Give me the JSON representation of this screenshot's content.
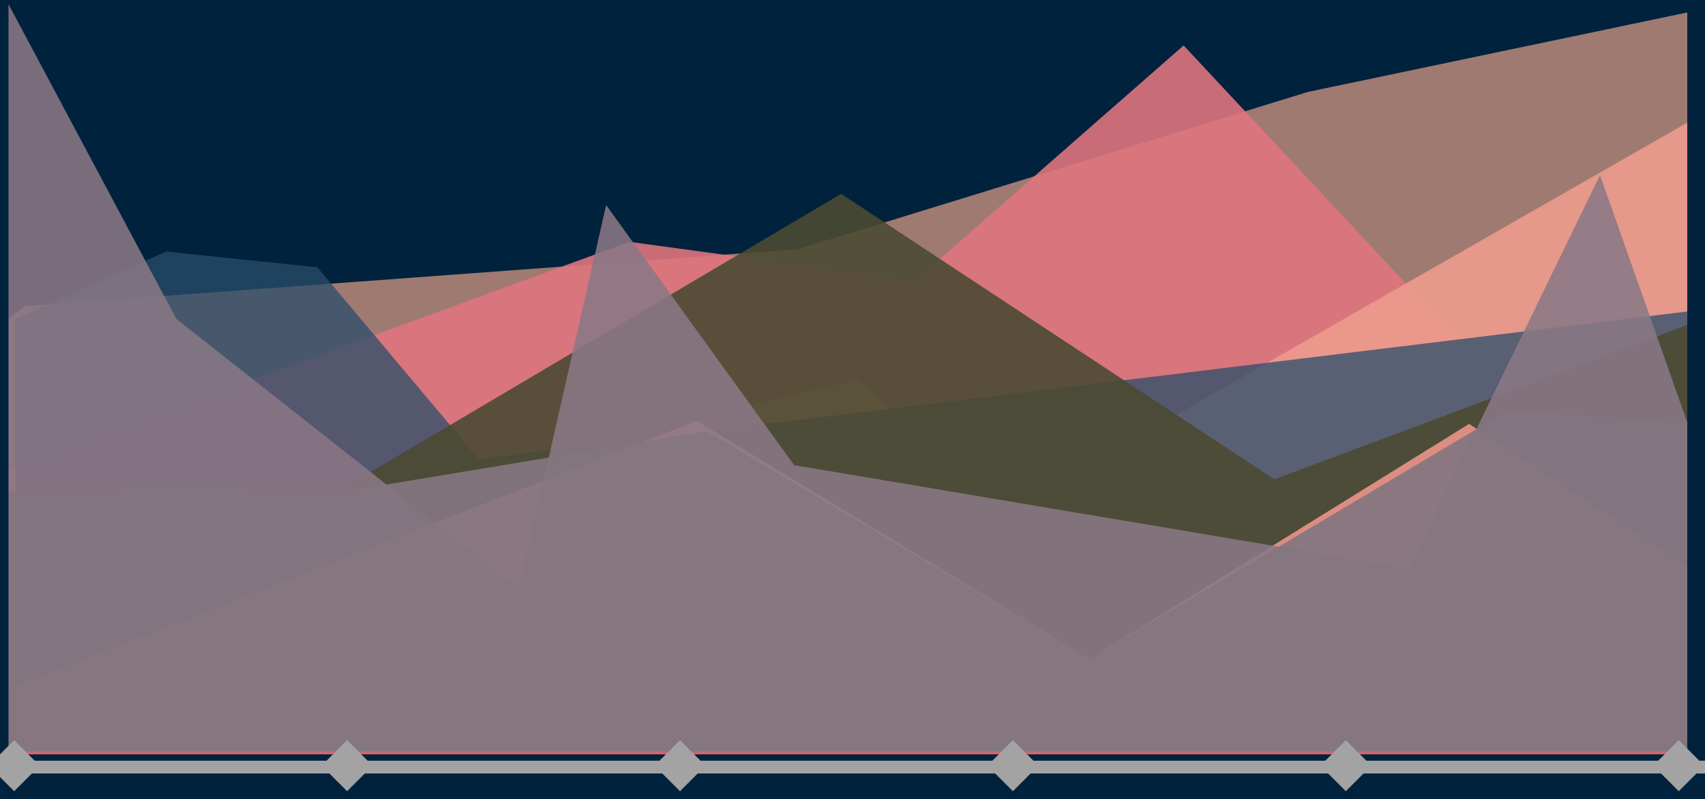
{
  "chart_data": {
    "type": "area",
    "title": "",
    "xlabel": "",
    "ylabel": "",
    "legend": "none",
    "grid": false,
    "background_color": "#00223d",
    "axis_color": "#a3a3a3",
    "marker_shape": "diamond",
    "x": [
      0,
      1,
      2,
      3,
      4,
      5
    ],
    "ylim": [
      0,
      100
    ],
    "series": [
      {
        "color": "#a47d73",
        "opacity": 0.97,
        "points": [
          [
            0,
            58
          ],
          [
            0.047,
            59.7
          ],
          [
            2.35,
            67.3
          ],
          [
            3.87,
            88.3
          ],
          [
            5,
            98.9
          ]
        ]
      },
      {
        "color": "#de747e",
        "opacity": 0.9,
        "points": [
          [
            0,
            38
          ],
          [
            1.85,
            68.3
          ],
          [
            2.7,
            63.1
          ],
          [
            3.5,
            94.5
          ],
          [
            5,
            22.5
          ]
        ]
      },
      {
        "color": "#ed9b8d",
        "opacity": 0.9,
        "points": [
          [
            0,
            24
          ],
          [
            2.53,
            49.9
          ],
          [
            2.97,
            32.2
          ],
          [
            5,
            84.2
          ]
        ]
      },
      {
        "color": "#2a4e6b",
        "opacity": 0.75,
        "points": [
          [
            0.02,
            58
          ],
          [
            0.47,
            67
          ],
          [
            0.92,
            64.9
          ],
          [
            1.4,
            39.3
          ],
          [
            5,
            59
          ]
        ]
      },
      {
        "color": "#4a4a32",
        "opacity": 0.9,
        "points": [
          [
            0,
            9
          ],
          [
            2.48,
            74.7
          ],
          [
            3.77,
            36.6
          ],
          [
            5,
            57.2
          ]
        ]
      },
      {
        "color": "#e79286",
        "opacity": 0.93,
        "points": [
          [
            0.02,
            9
          ],
          [
            2.05,
            44.4
          ],
          [
            3.22,
            12.6
          ],
          [
            4.35,
            44
          ],
          [
            5,
            25
          ]
        ]
      },
      {
        "color": "#8a7885",
        "opacity": 0.88,
        "points": [
          [
            0,
            100
          ],
          [
            0.5,
            58
          ],
          [
            1.52,
            22
          ],
          [
            1.78,
            73.2
          ],
          [
            2.34,
            38.5
          ],
          [
            4.17,
            24.7
          ],
          [
            4.74,
            77.2
          ],
          [
            5,
            44.2
          ]
        ]
      },
      {
        "color": "#837580",
        "opacity": 0.92,
        "points": [
          [
            0,
            35
          ],
          [
            0.47,
            35.5
          ],
          [
            1.03,
            35.2
          ],
          [
            2.08,
            43
          ],
          [
            3.22,
            12.6
          ],
          [
            4.47,
            45.9
          ],
          [
            5,
            44
          ]
        ]
      }
    ]
  }
}
